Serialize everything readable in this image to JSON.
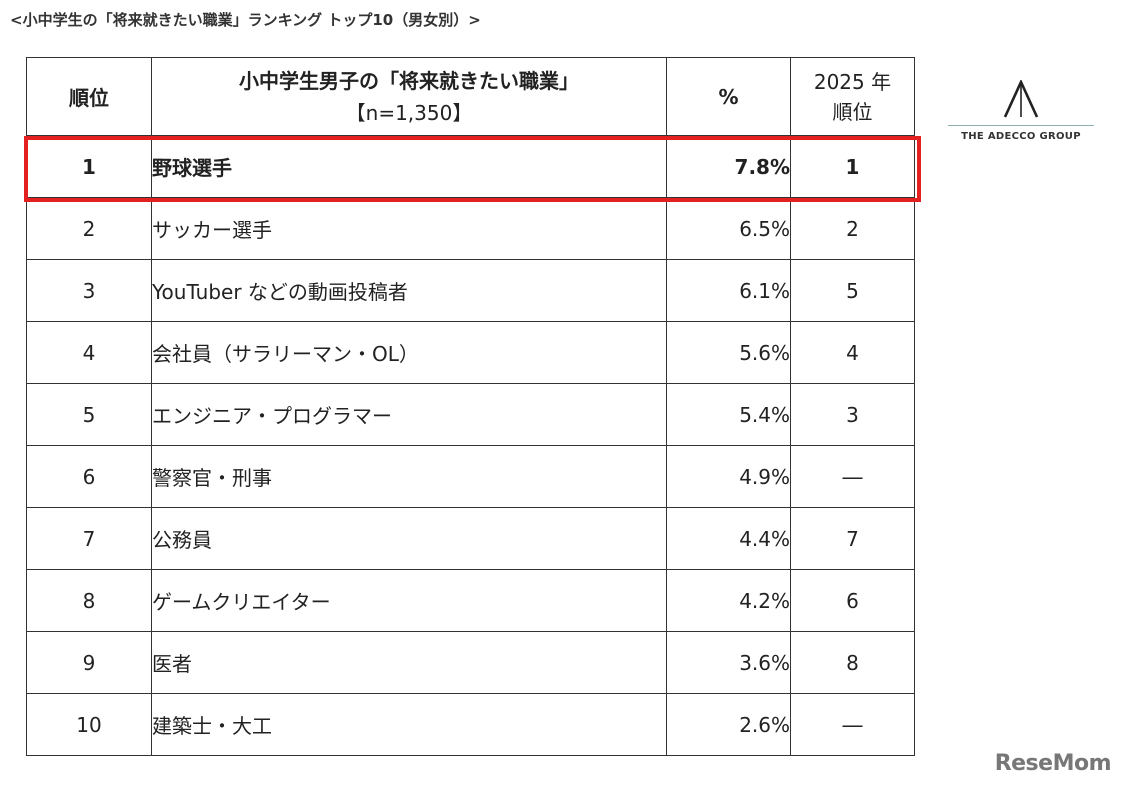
{
  "caption": "<小中学生の「将来就きたい職業」ランキング トップ10（男女別）>",
  "table": {
    "headers": {
      "rank": "順位",
      "job_title": "小中学生男子の「将来就きたい職業」",
      "job_sample": "【n=1,350】",
      "percent": "%",
      "prev_year": "2025 年",
      "prev_rank": "順位"
    },
    "rows": [
      {
        "rank": "1",
        "job": "野球選手",
        "percent": "7.8%",
        "prev": "1"
      },
      {
        "rank": "2",
        "job": "サッカー選手",
        "percent": "6.5%",
        "prev": "2"
      },
      {
        "rank": "3",
        "job": "YouTuber などの動画投稿者",
        "percent": "6.1%",
        "prev": "5"
      },
      {
        "rank": "4",
        "job": "会社員（サラリーマン・OL）",
        "percent": "5.6%",
        "prev": "4"
      },
      {
        "rank": "5",
        "job": "エンジニア・プログラマー",
        "percent": "5.4%",
        "prev": "3"
      },
      {
        "rank": "6",
        "job": "警察官・刑事",
        "percent": "4.9%",
        "prev": "―"
      },
      {
        "rank": "7",
        "job": "公務員",
        "percent": "4.4%",
        "prev": "7"
      },
      {
        "rank": "8",
        "job": "ゲームクリエイター",
        "percent": "4.2%",
        "prev": "6"
      },
      {
        "rank": "9",
        "job": "医者",
        "percent": "3.6%",
        "prev": "8"
      },
      {
        "rank": "10",
        "job": "建築士・大工",
        "percent": "2.6%",
        "prev": "―"
      }
    ]
  },
  "highlight_color": "#e32121",
  "brand": {
    "name": "THE ADECCO GROUP",
    "icon": "adecco-a-logo-icon"
  },
  "watermark": "ReseMom"
}
